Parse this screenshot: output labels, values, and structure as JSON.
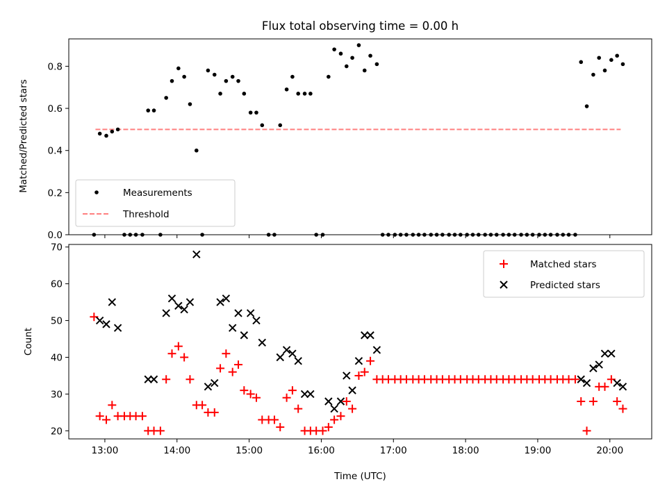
{
  "chart_data": [
    {
      "type": "scatter",
      "title": "Flux total observing time = 0.00 h",
      "xlabel": "",
      "ylabel": "Matched/Predicted stars",
      "xlim": [
        12.5,
        20.58
      ],
      "ylim": [
        0.0,
        0.93
      ],
      "yticks": [
        0.0,
        0.2,
        0.4,
        0.6,
        0.8
      ],
      "yticklabels": [
        "0.0",
        "0.2",
        "0.4",
        "0.6",
        "0.8"
      ],
      "legend": {
        "position": "lower-left",
        "entries": [
          {
            "label": "Measurements",
            "marker": "dot",
            "color": "#000000"
          },
          {
            "label": "Threshold",
            "marker": "dashed-line",
            "color": "#ff7f7f"
          }
        ]
      },
      "threshold": {
        "y": 0.5,
        "x": [
          12.87,
          20.15
        ]
      },
      "series": [
        {
          "name": "Measurements",
          "marker": "dot",
          "color": "#000000",
          "x": [
            12.85,
            12.93,
            13.02,
            13.1,
            13.18,
            13.27,
            13.35,
            13.43,
            13.52,
            13.6,
            13.68,
            13.77,
            13.85,
            13.93,
            14.02,
            14.1,
            14.18,
            14.27,
            14.35,
            14.43,
            14.52,
            14.6,
            14.68,
            14.77,
            14.85,
            14.93,
            15.02,
            15.1,
            15.18,
            15.27,
            15.35,
            15.43,
            15.52,
            15.6,
            15.68,
            15.77,
            15.85,
            15.93,
            16.02,
            16.1,
            16.18,
            16.27,
            16.35,
            16.43,
            16.52,
            16.6,
            16.68,
            16.77,
            16.85,
            16.93,
            17.02,
            17.1,
            17.18,
            17.27,
            17.35,
            17.43,
            17.52,
            17.6,
            17.68,
            17.77,
            17.85,
            17.93,
            18.02,
            18.1,
            18.18,
            18.27,
            18.35,
            18.43,
            18.52,
            18.6,
            18.68,
            18.77,
            18.85,
            18.93,
            19.02,
            19.1,
            19.18,
            19.27,
            19.35,
            19.43,
            19.52,
            19.6,
            19.68,
            19.77,
            19.85,
            19.93,
            20.02,
            20.1,
            20.18
          ],
          "y": [
            0.0,
            0.48,
            0.47,
            0.49,
            0.5,
            0.0,
            0.0,
            0.0,
            0.0,
            0.59,
            0.59,
            0.0,
            0.65,
            0.73,
            0.79,
            0.75,
            0.62,
            0.4,
            0.0,
            0.78,
            0.76,
            0.67,
            0.73,
            0.75,
            0.73,
            0.67,
            0.58,
            0.58,
            0.52,
            0.0,
            0.0,
            0.52,
            0.69,
            0.75,
            0.67,
            0.67,
            0.67,
            0.0,
            0.0,
            0.75,
            0.88,
            0.86,
            0.8,
            0.84,
            0.9,
            0.78,
            0.85,
            0.81,
            0.0,
            0.0,
            0.0,
            0.0,
            0.0,
            0.0,
            0.0,
            0.0,
            0.0,
            0.0,
            0.0,
            0.0,
            0.0,
            0.0,
            0.0,
            0.0,
            0.0,
            0.0,
            0.0,
            0.0,
            0.0,
            0.0,
            0.0,
            0.0,
            0.0,
            0.0,
            0.0,
            0.0,
            0.0,
            0.0,
            0.0,
            0.0,
            0.0,
            0.82,
            0.61,
            0.76,
            0.84,
            0.78,
            0.83,
            0.85,
            0.81
          ]
        }
      ]
    },
    {
      "type": "scatter",
      "title": "",
      "xlabel": "Time (UTC)",
      "ylabel": "Count",
      "xlim": [
        12.5,
        20.58
      ],
      "ylim": [
        17.8,
        70.7
      ],
      "xticks": [
        13,
        14,
        15,
        16,
        17,
        18,
        19,
        20
      ],
      "xticklabels": [
        "13:00",
        "14:00",
        "15:00",
        "16:00",
        "17:00",
        "18:00",
        "19:00",
        "20:00"
      ],
      "yticks": [
        20,
        30,
        40,
        50,
        60,
        70
      ],
      "yticklabels": [
        "20",
        "30",
        "40",
        "50",
        "60",
        "70"
      ],
      "legend": {
        "position": "top-right",
        "entries": [
          {
            "label": "Matched stars",
            "marker": "plus",
            "color": "#ff0000"
          },
          {
            "label": "Predicted stars",
            "marker": "x",
            "color": "#000000"
          }
        ]
      },
      "series": [
        {
          "name": "Matched stars",
          "marker": "plus",
          "color": "#ff0000",
          "x": [
            12.85,
            12.93,
            13.02,
            13.1,
            13.18,
            13.27,
            13.35,
            13.43,
            13.52,
            13.6,
            13.68,
            13.77,
            13.85,
            13.93,
            14.02,
            14.1,
            14.18,
            14.27,
            14.35,
            14.43,
            14.52,
            14.6,
            14.68,
            14.77,
            14.85,
            14.93,
            15.02,
            15.1,
            15.18,
            15.27,
            15.35,
            15.43,
            15.52,
            15.6,
            15.68,
            15.77,
            15.85,
            15.93,
            16.02,
            16.1,
            16.18,
            16.27,
            16.35,
            16.43,
            16.52,
            16.6,
            16.68,
            16.77,
            16.85,
            16.93,
            17.02,
            17.1,
            17.18,
            17.27,
            17.35,
            17.43,
            17.52,
            17.6,
            17.68,
            17.77,
            17.85,
            17.93,
            18.02,
            18.1,
            18.18,
            18.27,
            18.35,
            18.43,
            18.52,
            18.6,
            18.68,
            18.77,
            18.85,
            18.93,
            19.02,
            19.1,
            19.18,
            19.27,
            19.35,
            19.43,
            19.52,
            19.6,
            19.68,
            19.77,
            19.85,
            19.93,
            20.02,
            20.1,
            20.18
          ],
          "y": [
            51,
            24,
            23,
            27,
            24,
            24,
            24,
            24,
            24,
            20,
            20,
            20,
            34,
            41,
            43,
            40,
            34,
            27,
            27,
            25,
            25,
            37,
            41,
            36,
            38,
            31,
            30,
            29,
            23,
            23,
            23,
            21,
            29,
            31,
            26,
            20,
            20,
            20,
            20,
            21,
            23,
            24,
            28,
            26,
            35,
            36,
            39,
            34,
            34,
            34,
            34,
            34,
            34,
            34,
            34,
            34,
            34,
            34,
            34,
            34,
            34,
            34,
            34,
            34,
            34,
            34,
            34,
            34,
            34,
            34,
            34,
            34,
            34,
            34,
            34,
            34,
            34,
            34,
            34,
            34,
            34,
            28,
            20,
            28,
            32,
            32,
            34,
            28,
            26
          ]
        },
        {
          "name": "Predicted stars",
          "marker": "x",
          "color": "#000000",
          "x": [
            12.93,
            13.02,
            13.1,
            13.18,
            13.6,
            13.68,
            13.85,
            13.93,
            14.02,
            14.1,
            14.18,
            14.27,
            14.43,
            14.52,
            14.6,
            14.68,
            14.77,
            14.85,
            14.93,
            15.02,
            15.1,
            15.18,
            15.43,
            15.52,
            15.6,
            15.68,
            15.77,
            15.85,
            16.1,
            16.18,
            16.27,
            16.35,
            16.43,
            16.52,
            16.6,
            16.68,
            16.77,
            19.6,
            19.68,
            19.77,
            19.85,
            19.93,
            20.02,
            20.1,
            20.18
          ],
          "y": [
            50,
            49,
            55,
            48,
            34,
            34,
            52,
            56,
            54,
            53,
            55,
            68,
            32,
            33,
            55,
            56,
            48,
            52,
            46,
            52,
            50,
            44,
            40,
            42,
            41,
            39,
            30,
            30,
            28,
            26,
            28,
            35,
            31,
            39,
            46,
            46,
            42,
            34,
            33,
            37,
            38,
            41,
            41,
            33,
            32
          ]
        }
      ]
    }
  ]
}
